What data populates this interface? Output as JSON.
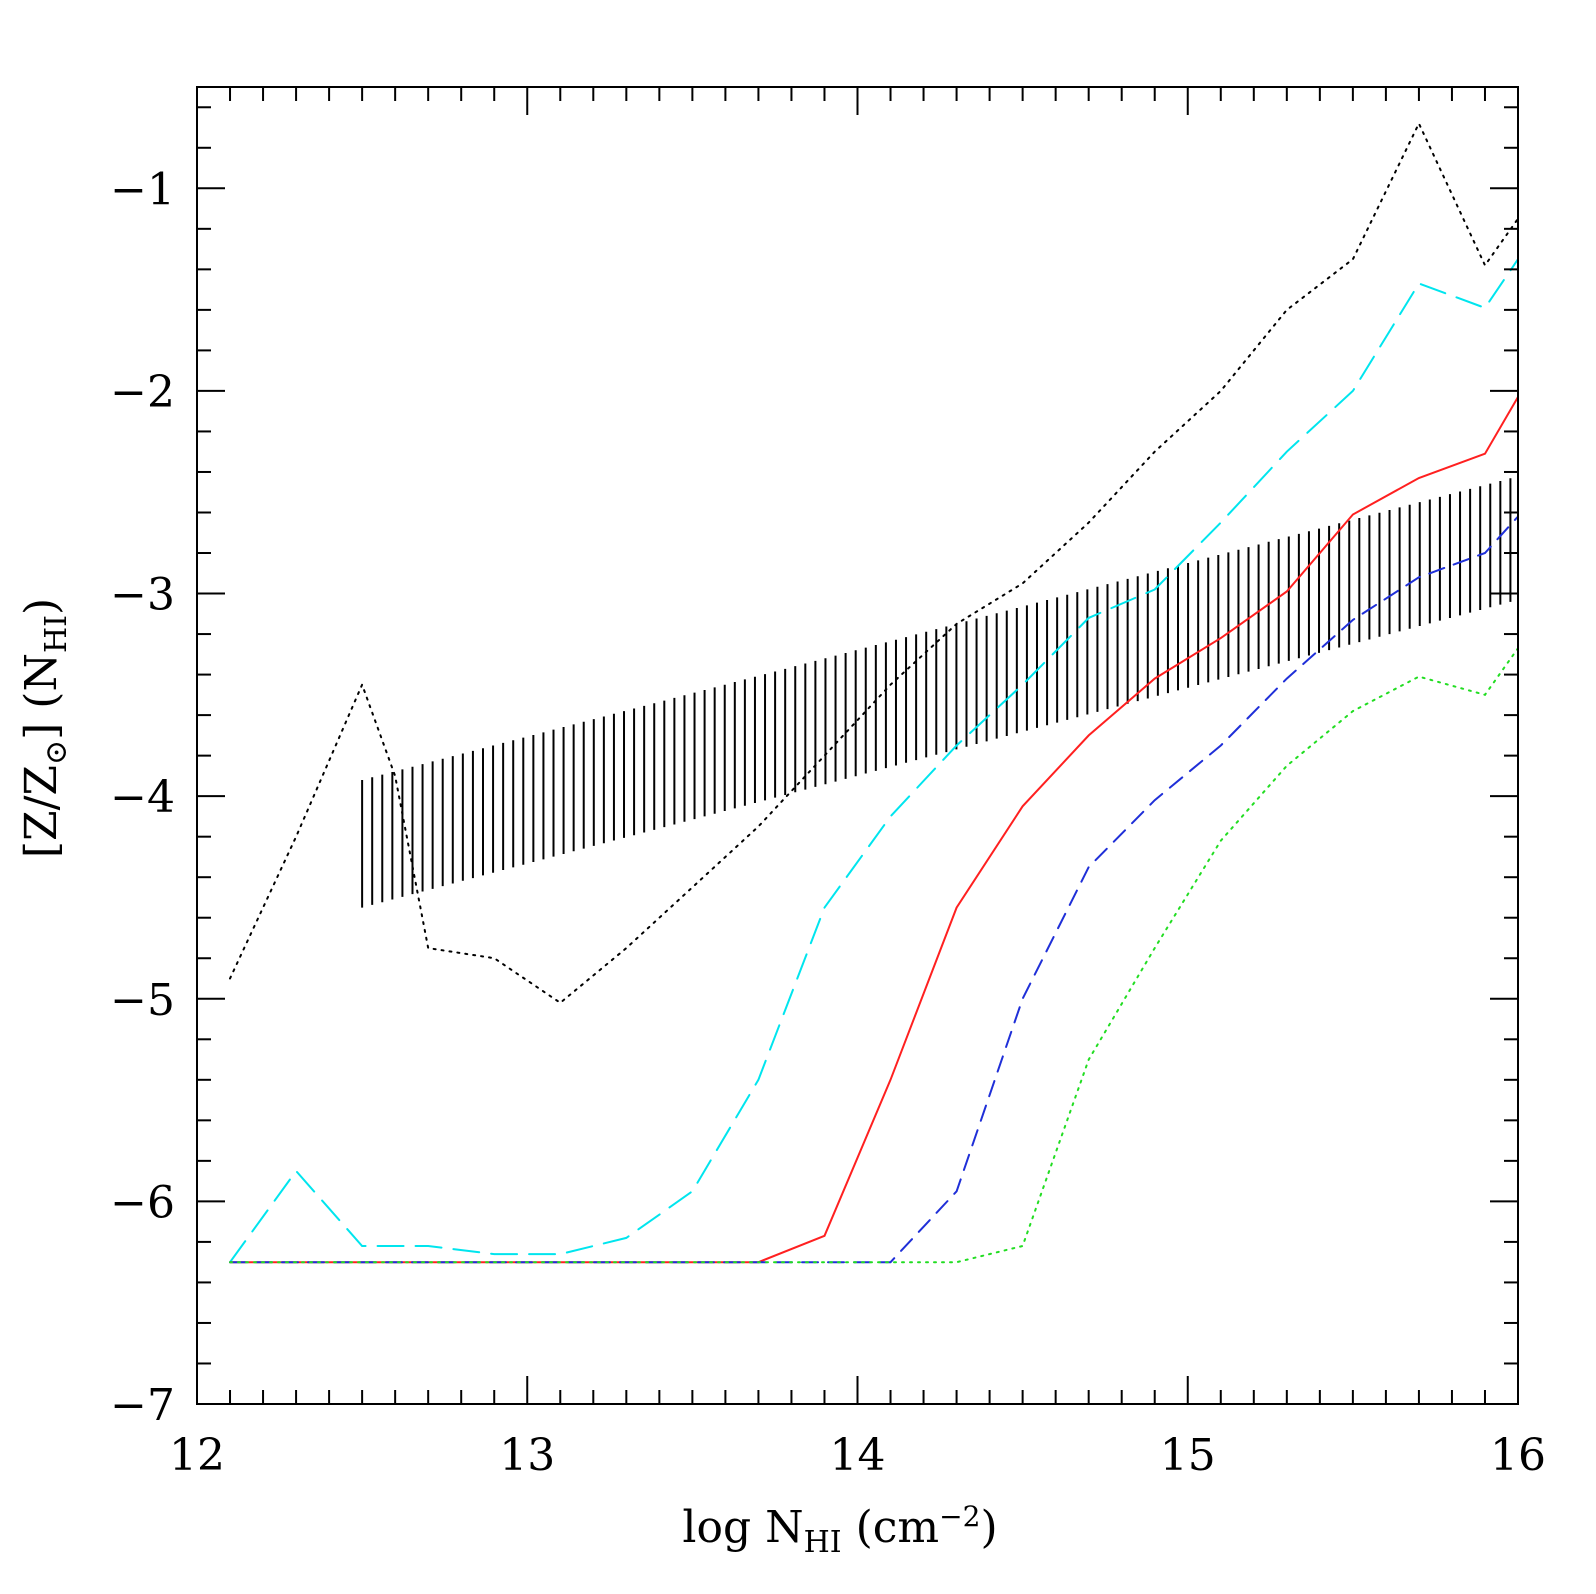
{
  "chart_data": {
    "type": "line",
    "xlabel": {
      "main": "log N",
      "sub": "HI",
      "rest": " (cm",
      "sup": "−2",
      "close": ")"
    },
    "ylabel": {
      "open": "[Z/Z",
      "sun": "⊙",
      "close": "] (N",
      "sub": "HI",
      "end": ")"
    },
    "xlim": [
      12,
      16
    ],
    "ylim": [
      -7,
      -0.5
    ],
    "xticks": [
      12,
      13,
      14,
      15,
      16
    ],
    "xtick_labels": [
      "12",
      "13",
      "14",
      "15",
      "16"
    ],
    "yticks": [
      -7,
      -6,
      -5,
      -4,
      -3,
      -2,
      -1
    ],
    "ytick_labels": [
      "−7",
      "−6",
      "−5",
      "−4",
      "−3",
      "−2",
      "−1"
    ],
    "x_minor_step": 0.1,
    "y_minor_step": 0.2,
    "series": [
      {
        "style": "dotted",
        "color": "#000000",
        "x": [
          12.1,
          12.3,
          12.5,
          12.6,
          12.7,
          12.9,
          13.1,
          13.3,
          13.5,
          13.7,
          13.9,
          14.1,
          14.3,
          14.5,
          14.7,
          14.9,
          15.1,
          15.3,
          15.5,
          15.7,
          15.9,
          16.0
        ],
        "y": [
          -4.9,
          -4.2,
          -3.45,
          -3.9,
          -4.75,
          -4.8,
          -5.02,
          -4.75,
          -4.45,
          -4.15,
          -3.8,
          -3.45,
          -3.15,
          -2.95,
          -2.65,
          -2.3,
          -2.0,
          -1.6,
          -1.35,
          -0.68,
          -1.38,
          -1.15
        ]
      },
      {
        "style": "long-dash",
        "color": "#00e5ee",
        "x": [
          12.1,
          12.3,
          12.5,
          12.7,
          12.9,
          13.1,
          13.3,
          13.5,
          13.7,
          13.9,
          14.1,
          14.3,
          14.5,
          14.7,
          14.9,
          15.1,
          15.3,
          15.5,
          15.7,
          15.9,
          16.0
        ],
        "y": [
          -6.3,
          -5.85,
          -6.22,
          -6.22,
          -6.26,
          -6.26,
          -6.18,
          -5.95,
          -5.4,
          -4.55,
          -4.1,
          -3.75,
          -3.45,
          -3.12,
          -2.98,
          -2.65,
          -2.3,
          -2.0,
          -1.47,
          -1.59,
          -1.35
        ]
      },
      {
        "style": "solid",
        "color": "#ff2020",
        "x": [
          12.1,
          13.7,
          13.9,
          14.1,
          14.3,
          14.5,
          14.7,
          14.9,
          15.1,
          15.3,
          15.5,
          15.7,
          15.9,
          16.0
        ],
        "y": [
          -6.3,
          -6.3,
          -6.17,
          -5.4,
          -4.55,
          -4.05,
          -3.7,
          -3.42,
          -3.22,
          -2.99,
          -2.61,
          -2.43,
          -2.31,
          -2.03
        ]
      },
      {
        "style": "dashed",
        "color": "#1f2fd8",
        "x": [
          12.1,
          14.1,
          14.3,
          14.5,
          14.7,
          14.9,
          15.1,
          15.3,
          15.5,
          15.7,
          15.9,
          16.0
        ],
        "y": [
          -6.3,
          -6.3,
          -5.95,
          -5.0,
          -4.35,
          -4.02,
          -3.75,
          -3.42,
          -3.13,
          -2.92,
          -2.8,
          -2.62
        ]
      },
      {
        "style": "dotted",
        "color": "#22dd22",
        "x": [
          12.1,
          14.3,
          14.5,
          14.7,
          14.9,
          15.1,
          15.3,
          15.5,
          15.7,
          15.9,
          16.0
        ],
        "y": [
          -6.3,
          -6.3,
          -6.22,
          -5.3,
          -4.75,
          -4.22,
          -3.85,
          -3.58,
          -3.41,
          -3.5,
          -3.27
        ]
      }
    ],
    "band": {
      "color": "#000000",
      "x_start": 12.5,
      "x_end": 15.98,
      "step": 0.0305,
      "lower": {
        "x": [
          12.5,
          15.98
        ],
        "y": [
          -4.55,
          -3.04
        ]
      },
      "upper": {
        "x": [
          12.5,
          15.98
        ],
        "y": [
          -3.92,
          -2.43
        ]
      }
    }
  }
}
